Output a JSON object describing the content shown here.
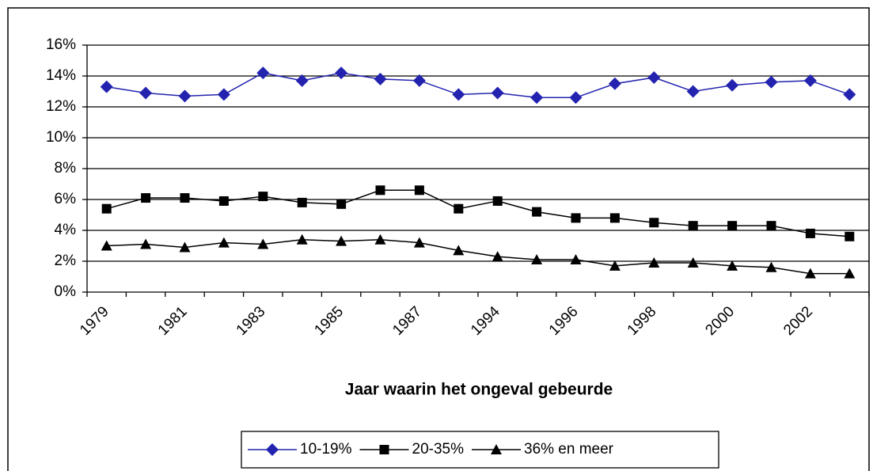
{
  "chart_data": {
    "type": "line",
    "x_label": "Jaar waarin het ongeval gebeurde",
    "categories": [
      "1979",
      null,
      "1981",
      null,
      "1983",
      null,
      "1985",
      null,
      "1987",
      null,
      "1994",
      null,
      "1996",
      null,
      "1998",
      null,
      "2000",
      null,
      "2002",
      null
    ],
    "series": [
      {
        "name": "10-19%",
        "color": "#2323b0",
        "marker": "diamond",
        "values": [
          13.3,
          12.9,
          12.7,
          12.8,
          14.2,
          13.7,
          14.2,
          13.8,
          13.7,
          12.8,
          12.9,
          12.6,
          12.6,
          13.5,
          13.9,
          13.0,
          13.4,
          13.6,
          13.7,
          12.8
        ]
      },
      {
        "name": "20-35%",
        "color": "#000000",
        "marker": "square",
        "values": [
          5.4,
          6.1,
          6.1,
          5.9,
          6.2,
          5.8,
          5.7,
          6.6,
          6.6,
          5.4,
          5.9,
          5.2,
          4.8,
          4.8,
          4.5,
          4.3,
          4.3,
          4.3,
          3.8,
          3.6
        ]
      },
      {
        "name": "36% en meer",
        "color": "#000000",
        "marker": "triangle",
        "values": [
          3.0,
          3.1,
          2.9,
          3.2,
          3.1,
          3.4,
          3.3,
          3.4,
          3.2,
          2.7,
          2.3,
          2.1,
          2.1,
          1.7,
          1.9,
          1.9,
          1.7,
          1.6,
          1.2,
          1.2
        ]
      }
    ],
    "ylim": [
      0,
      16
    ],
    "yticks": [
      {
        "value": 0,
        "label": "0%"
      },
      {
        "value": 2,
        "label": "2%"
      },
      {
        "value": 4,
        "label": "4%"
      },
      {
        "value": 6,
        "label": "6%"
      },
      {
        "value": 8,
        "label": "8%"
      },
      {
        "value": 10,
        "label": "10%"
      },
      {
        "value": 12,
        "label": "12%"
      },
      {
        "value": 14,
        "label": "14%"
      },
      {
        "value": 16,
        "label": "16%"
      }
    ],
    "grid": true
  }
}
